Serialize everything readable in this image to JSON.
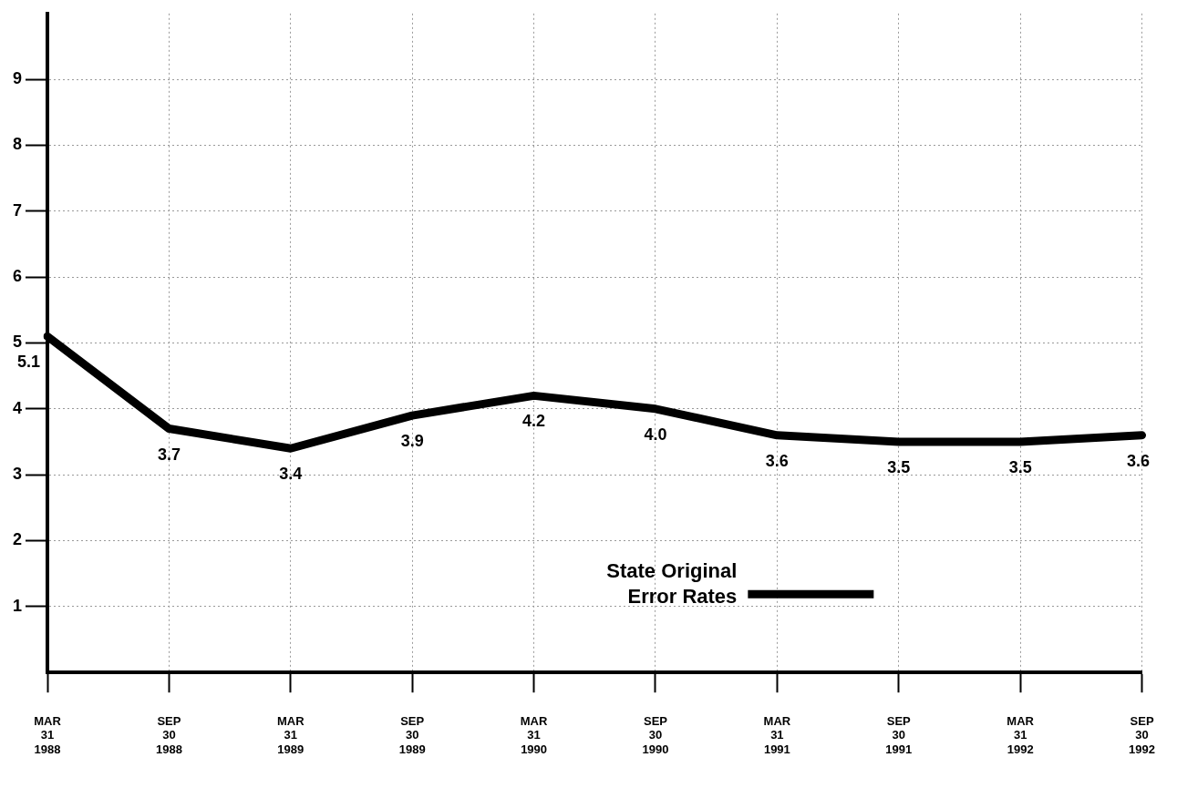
{
  "chart_data": {
    "type": "line",
    "categories": [
      "MAR\n31\n1988",
      "SEP\n30\n1988",
      "MAR\n31\n1989",
      "SEP\n30\n1989",
      "MAR\n31\n1990",
      "SEP\n30\n1990",
      "MAR\n31\n1991",
      "SEP\n30\n1991",
      "MAR\n31\n1992",
      "SEP\n30\n1992"
    ],
    "series": [
      {
        "name": "State Original\nError Rates",
        "color": "#000000",
        "values": [
          5.1,
          3.7,
          3.4,
          3.9,
          4.2,
          4.0,
          3.6,
          3.5,
          3.5,
          3.6
        ],
        "value_labels": [
          "5.1",
          "3.7",
          "3.4",
          "3.9",
          "4.2",
          "4.0",
          "3.6",
          "3.5",
          "3.5",
          "3.6"
        ]
      }
    ],
    "ylim": [
      0,
      10
    ],
    "yticks": [
      1,
      2,
      3,
      4,
      5,
      6,
      7,
      8,
      9
    ],
    "grid": true,
    "legend": "bottom",
    "marker": "none",
    "line_style": "solid"
  }
}
